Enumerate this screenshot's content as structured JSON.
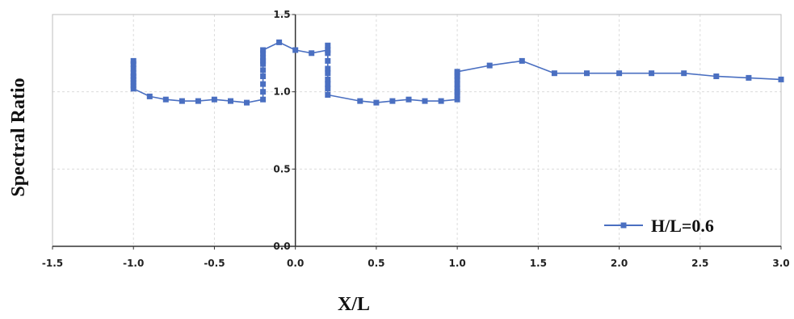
{
  "chart_data": {
    "type": "line",
    "title": "",
    "xlabel": "X/L",
    "ylabel": "Spectral Ratio",
    "xlim": [
      -1.5,
      3.0
    ],
    "ylim": [
      0.0,
      1.5
    ],
    "x_ticks": [
      "-1.5",
      "-1.0",
      "-0.5",
      "0.0",
      "0.5",
      "1.0",
      "1.5",
      "2.0",
      "2.5",
      "3.0"
    ],
    "y_ticks": [
      "0.0",
      "0.5",
      "1.0",
      "1.5"
    ],
    "grid": true,
    "legend_position": "bottom-right",
    "series_color": "#4a6fc1",
    "series": [
      {
        "name": "H/L=0.6",
        "x": [
          -1.0,
          -1.0,
          -1.0,
          -1.0,
          -1.0,
          -1.0,
          -1.0,
          -1.0,
          -1.0,
          -0.9,
          -0.8,
          -0.7,
          -0.6,
          -0.5,
          -0.4,
          -0.3,
          -0.2,
          -0.2,
          -0.2,
          -0.2,
          -0.2,
          -0.2,
          -0.2,
          -0.2,
          -0.2,
          -0.2,
          -0.1,
          0.0,
          0.1,
          0.2,
          0.2,
          0.2,
          0.2,
          0.2,
          0.2,
          0.2,
          0.2,
          0.2,
          0.2,
          0.4,
          0.5,
          0.6,
          0.7,
          0.8,
          0.9,
          1.0,
          1.0,
          1.0,
          1.0,
          1.0,
          1.0,
          1.0,
          1.0,
          1.0,
          1.2,
          1.4,
          1.6,
          1.8,
          2.0,
          2.2,
          2.4,
          2.6,
          2.8,
          3.0
        ],
        "y": [
          1.2,
          1.18,
          1.15,
          1.12,
          1.1,
          1.08,
          1.06,
          1.04,
          1.02,
          0.97,
          0.95,
          0.94,
          0.94,
          0.95,
          0.94,
          0.93,
          0.95,
          1.0,
          1.05,
          1.1,
          1.14,
          1.18,
          1.2,
          1.22,
          1.25,
          1.27,
          1.32,
          1.27,
          1.25,
          1.27,
          1.3,
          1.25,
          1.2,
          1.15,
          1.12,
          1.08,
          1.05,
          1.02,
          0.98,
          0.94,
          0.93,
          0.94,
          0.95,
          0.94,
          0.94,
          0.95,
          0.98,
          1.0,
          1.02,
          1.05,
          1.08,
          1.1,
          1.12,
          1.13,
          1.17,
          1.2,
          1.12,
          1.12,
          1.12,
          1.12,
          1.12,
          1.1,
          1.09,
          1.08
        ]
      }
    ]
  }
}
